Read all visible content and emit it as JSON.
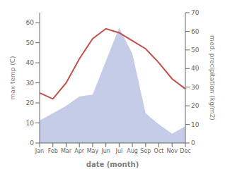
{
  "chart_data": {
    "type": "line",
    "xlabel": "date (month)",
    "ylabel": "max temp (C)",
    "y2label": "med. precipitation (kg/m2)",
    "categories": [
      "Jan",
      "Feb",
      "Mar",
      "Apr",
      "May",
      "Jun",
      "Jul",
      "Aug",
      "Sep",
      "Oct",
      "Nov",
      "Dec"
    ],
    "series": [
      {
        "type": "line",
        "color": "#c0504d",
        "values": [
          25,
          22,
          30,
          42,
          52,
          57,
          55,
          51,
          47,
          40,
          32,
          27
        ]
      },
      {
        "type": "area",
        "axis": "y2",
        "color": "#c5cce8",
        "values": [
          12,
          16,
          20,
          25,
          26,
          44,
          62,
          48,
          16,
          10,
          5,
          9
        ]
      }
    ],
    "ylim": [
      0,
      65
    ],
    "yticks": [
      0,
      10,
      20,
      30,
      40,
      50,
      60
    ],
    "y2lim": [
      0,
      70
    ],
    "y2ticks": [
      0,
      10,
      20,
      30,
      40,
      50,
      60,
      70
    ],
    "grid": false
  }
}
